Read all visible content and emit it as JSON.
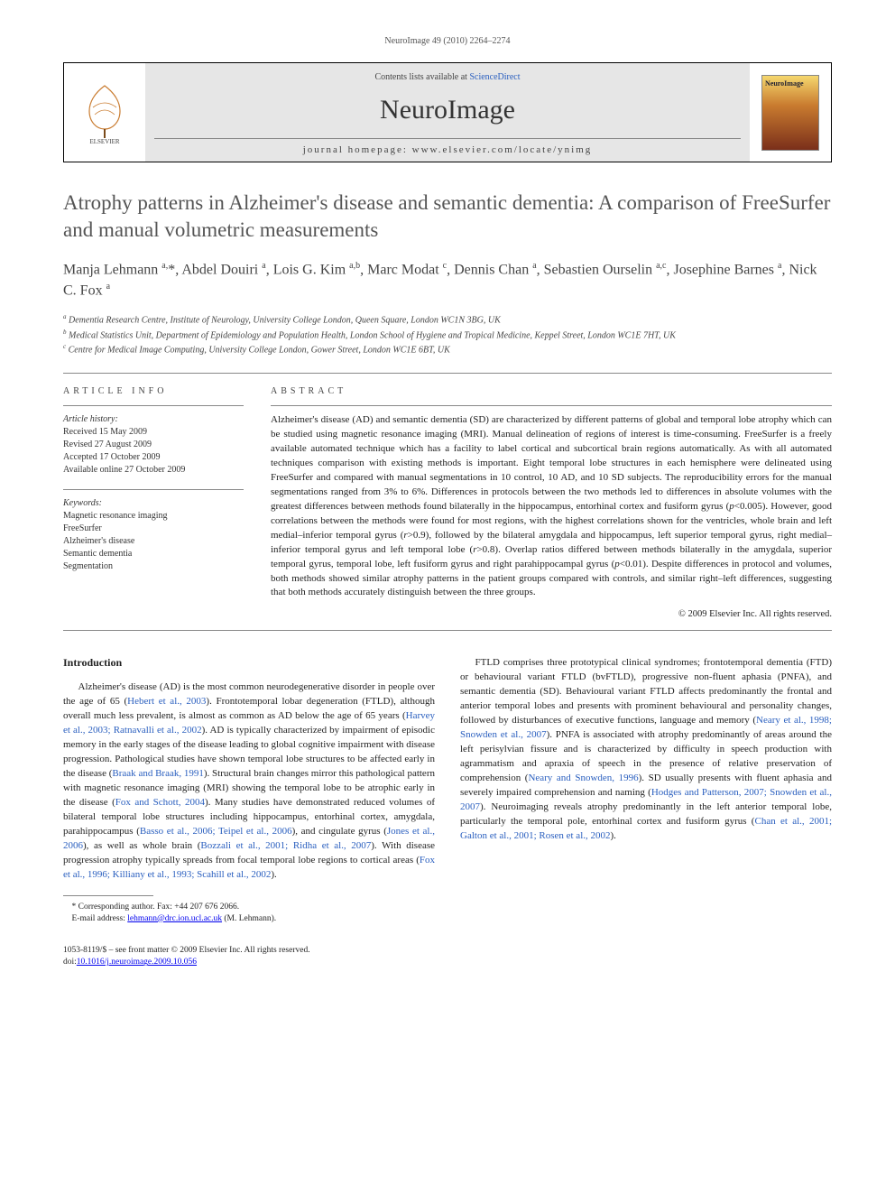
{
  "running_head": "NeuroImage 49 (2010) 2264–2274",
  "banner": {
    "contents_prefix": "Contents lists available at ",
    "contents_link": "ScienceDirect",
    "journal": "NeuroImage",
    "homepage_label": "journal homepage: ",
    "homepage_url": "www.elsevier.com/locate/ynimg",
    "cover_title": "NeuroImage"
  },
  "title": "Atrophy patterns in Alzheimer's disease and semantic dementia: A comparison of FreeSurfer and manual volumetric measurements",
  "authors_html": "Manja Lehmann <sup>a,</sup>*, Abdel Douiri <sup>a</sup>, Lois G. Kim <sup>a,b</sup>, Marc Modat <sup>c</sup>, Dennis Chan <sup>a</sup>, Sebastien Ourselin <sup>a,c</sup>, Josephine Barnes <sup>a</sup>, Nick C. Fox <sup>a</sup>",
  "affiliations": [
    "a Dementia Research Centre, Institute of Neurology, University College London, Queen Square, London WC1N 3BG, UK",
    "b Medical Statistics Unit, Department of Epidemiology and Population Health, London School of Hygiene and Tropical Medicine, Keppel Street, London WC1E 7HT, UK",
    "c Centre for Medical Image Computing, University College London, Gower Street, London WC1E 6BT, UK"
  ],
  "article_info": {
    "heading": "ARTICLE INFO",
    "history_label": "Article history:",
    "history": [
      "Received 15 May 2009",
      "Revised 27 August 2009",
      "Accepted 17 October 2009",
      "Available online 27 October 2009"
    ],
    "keywords_label": "Keywords:",
    "keywords": [
      "Magnetic resonance imaging",
      "FreeSurfer",
      "Alzheimer's disease",
      "Semantic dementia",
      "Segmentation"
    ]
  },
  "abstract": {
    "heading": "ABSTRACT",
    "text_html": "Alzheimer's disease (AD) and semantic dementia (SD) are characterized by different patterns of global and temporal lobe atrophy which can be studied using magnetic resonance imaging (MRI). Manual delineation of regions of interest is time-consuming. FreeSurfer is a freely available automated technique which has a facility to label cortical and subcortical brain regions automatically. As with all automated techniques comparison with existing methods is important. Eight temporal lobe structures in each hemisphere were delineated using FreeSurfer and compared with manual segmentations in 10 control, 10 AD, and 10 SD subjects. The reproducibility errors for the manual segmentations ranged from 3% to 6%. Differences in protocols between the two methods led to differences in absolute volumes with the greatest differences between methods found bilaterally in the hippocampus, entorhinal cortex and fusiform gyrus (<span class=\"ital\">p</span>&lt;0.005). However, good correlations between the methods were found for most regions, with the highest correlations shown for the ventricles, whole brain and left medial–inferior temporal gyrus (<span class=\"ital\">r</span>&gt;0.9), followed by the bilateral amygdala and hippocampus, left superior temporal gyrus, right medial–inferior temporal gyrus and left temporal lobe (<span class=\"ital\">r</span>&gt;0.8). Overlap ratios differed between methods bilaterally in the amygdala, superior temporal gyrus, temporal lobe, left fusiform gyrus and right parahippocampal gyrus (<span class=\"ital\">p</span>&lt;0.01). Despite differences in protocol and volumes, both methods showed similar atrophy patterns in the patient groups compared with controls, and similar right–left differences, suggesting that both methods accurately distinguish between the three groups.",
    "copyright": "© 2009 Elsevier Inc. All rights reserved."
  },
  "intro_heading": "Introduction",
  "body_paragraphs_html": [
    "Alzheimer's disease (AD) is the most common neurodegenerative disorder in people over the age of 65 (<a href=\"#\">Hebert et al., 2003</a>). Frontotemporal lobar degeneration (FTLD), although overall much less prevalent, is almost as common as AD below the age of 65 years (<a href=\"#\">Harvey et al., 2003; Ratnavalli et al., 2002</a>). AD is typically characterized by impairment of episodic memory in the early stages of the disease leading to global cognitive impairment with disease progression. Pathological studies have shown temporal lobe structures to be affected early in the disease (<a href=\"#\">Braak and Braak, 1991</a>). Structural brain changes mirror this pathological pattern with magnetic resonance imaging (MRI) showing the temporal lobe to be atrophic early in the disease (<a href=\"#\">Fox and Schott, 2004</a>). Many studies have demonstrated reduced volumes of bilateral temporal lobe structures including hippocampus, entorhinal cortex, amygdala, parahippocampus (<a href=\"#\">Basso et al., 2006; Teipel et al., 2006</a>), and cingulate gyrus (<a href=\"#\">Jones et al., 2006</a>), as well as whole brain (<a href=\"#\">Bozzali et al., 2001; Ridha et al., 2007</a>). With disease progression atrophy typically spreads from focal temporal lobe regions to cortical areas (<a href=\"#\">Fox et al., 1996; Killiany et al., 1993; Scahill et al., 2002</a>).",
    "FTLD comprises three prototypical clinical syndromes; frontotemporal dementia (FTD) or behavioural variant FTLD (bvFTLD), progressive non-fluent aphasia (PNFA), and semantic dementia (SD). Behavioural variant FTLD affects predominantly the frontal and anterior temporal lobes and presents with prominent behavioural and personality changes, followed by disturbances of executive functions, language and memory (<a href=\"#\">Neary et al., 1998; Snowden et al., 2007</a>). PNFA is associated with atrophy predominantly of areas around the left perisylvian fissure and is characterized by difficulty in speech production with agrammatism and apraxia of speech in the presence of relative preservation of comprehension (<a href=\"#\">Neary and Snowden, 1996</a>). SD usually presents with fluent aphasia and severely impaired comprehension and naming (<a href=\"#\">Hodges and Patterson, 2007; Snowden et al., 2007</a>). Neuroimaging reveals atrophy predominantly in the left anterior temporal lobe, particularly the temporal pole, entorhinal cortex and fusiform gyrus (<a href=\"#\">Chan et al., 2001; Galton et al., 2001; Rosen et al., 2002</a>)."
  ],
  "corresponding": {
    "line1": "* Corresponding author. Fax: +44 207 676 2066.",
    "email_label": "E-mail address: ",
    "email": "lehmann@drc.ion.ucl.ac.uk",
    "email_suffix": " (M. Lehmann)."
  },
  "footer": {
    "line1": "1053-8119/$ – see front matter © 2009 Elsevier Inc. All rights reserved.",
    "doi_prefix": "doi:",
    "doi": "10.1016/j.neuroimage.2009.10.056"
  },
  "colors": {
    "link": "#2a5fbf",
    "text": "#222",
    "muted": "#444",
    "rule": "#888"
  }
}
